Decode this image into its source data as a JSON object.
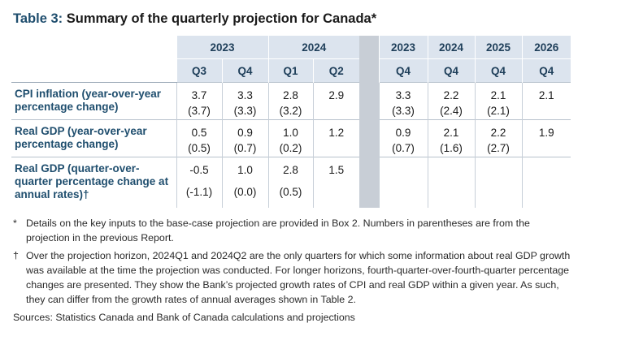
{
  "title": {
    "prefix": "Table 3:",
    "text": "Summary of the quarterly projection for Canada*"
  },
  "years": {
    "y2023": "2023",
    "y2024": "2024",
    "a2023": "2023",
    "a2024": "2024",
    "a2025": "2025",
    "a2026": "2026"
  },
  "quarters": [
    "Q3",
    "Q4",
    "Q1",
    "Q2",
    "Q4",
    "Q4",
    "Q4",
    "Q4"
  ],
  "rows": [
    {
      "label": "CPI inflation (year-over-year percentage change)",
      "cells": [
        [
          "3.7",
          "(3.7)"
        ],
        [
          "3.3",
          "(3.3)"
        ],
        [
          "2.8",
          "(3.2)"
        ],
        [
          "2.9",
          ""
        ],
        [
          "3.3",
          "(3.3)"
        ],
        [
          "2.2",
          "(2.4)"
        ],
        [
          "2.1",
          "(2.1)"
        ],
        [
          "2.1",
          ""
        ]
      ]
    },
    {
      "label": "Real GDP (year-over-year percentage change)",
      "cells": [
        [
          "0.5",
          "(0.5)"
        ],
        [
          "0.9",
          "(0.7)"
        ],
        [
          "1.0",
          "(0.2)"
        ],
        [
          "1.2",
          ""
        ],
        [
          "0.9",
          "(0.7)"
        ],
        [
          "2.1",
          "(1.6)"
        ],
        [
          "2.2",
          "(2.7)"
        ],
        [
          "1.9",
          ""
        ]
      ]
    },
    {
      "label": "Real GDP (quarter-over-quarter percentage change at annual rates)†",
      "cells": [
        [
          "-0.5",
          "(-1.1)"
        ],
        [
          "1.0",
          "(0.0)"
        ],
        [
          "2.8",
          "(0.5)"
        ],
        [
          "1.5",
          ""
        ],
        [
          "",
          ""
        ],
        [
          "",
          ""
        ],
        [
          "",
          ""
        ],
        [
          "",
          ""
        ]
      ]
    }
  ],
  "notes": [
    {
      "marker": "*",
      "text": "Details on the key inputs to the base-case projection are provided in Box 2. Numbers in parentheses are from the projection in the previous Report."
    },
    {
      "marker": "†",
      "text": "Over the projection horizon, 2024Q1 and 2024Q2 are the only quarters for which some information about real GDP growth was available at the time the projection was conducted. For longer horizons, fourth-quarter-over-fourth-quarter percentage changes are presented. They show the Bank’s projected growth rates of CPI and real GDP within a given year. As such, they can differ from the growth rates of annual averages shown in Table 2."
    }
  ],
  "source": "Sources: Statistics Canada and Bank of Canada calculations and projections"
}
